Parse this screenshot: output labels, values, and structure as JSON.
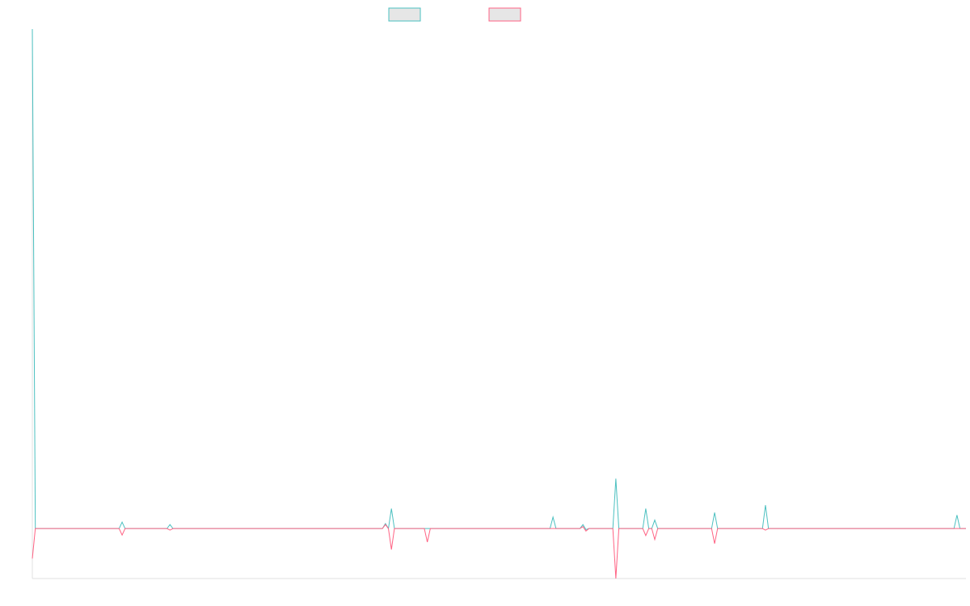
{
  "chart_data": {
    "type": "line",
    "x": [
      0,
      1,
      29,
      30,
      31,
      45,
      46,
      47,
      117,
      118,
      119,
      120,
      121,
      131,
      132,
      133,
      173,
      174,
      175,
      183,
      184,
      185,
      186,
      194,
      195,
      196,
      204,
      205,
      206,
      207,
      208,
      209,
      227,
      228,
      229,
      244,
      245,
      246,
      308,
      309,
      310,
      312
    ],
    "series": [
      {
        "color": "#4bc0c0",
        "values": [
          100,
          0,
          0,
          1.3,
          0,
          0,
          0.8,
          0,
          0,
          1,
          0,
          4,
          0,
          0,
          0,
          0,
          0,
          2.3,
          0,
          0,
          0.8,
          -0.2,
          0,
          0,
          10,
          0,
          0,
          4,
          0,
          0,
          1.7,
          0,
          0,
          3.2,
          0,
          0,
          4.7,
          0,
          0,
          2.7,
          0,
          0
        ]
      },
      {
        "color": "#ff6384",
        "values": [
          -6,
          0,
          0,
          -1.3,
          0,
          0,
          -0.3,
          0,
          0,
          0.8,
          0,
          -4.2,
          0,
          0,
          -2.7,
          0,
          0,
          0,
          0,
          0,
          0.4,
          -0.5,
          0,
          0,
          -10,
          0,
          0,
          -1.4,
          0,
          0,
          -2.2,
          0,
          0,
          -3,
          0,
          0,
          -0.3,
          0,
          0,
          0,
          0,
          0
        ]
      }
    ],
    "xlim": [
      0,
      312
    ],
    "ylim": [
      -10,
      100
    ]
  }
}
